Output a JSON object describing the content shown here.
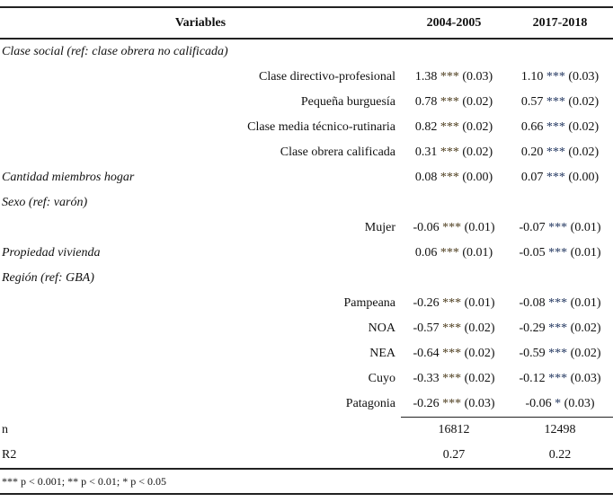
{
  "header": {
    "variables": "Variables",
    "col1": "2004-2005",
    "col2": "2017-2018"
  },
  "rows": [
    {
      "type": "cat",
      "label": "Clase social (ref: clase obrera no calificada)"
    },
    {
      "type": "row",
      "label": "Clase directivo-profesional",
      "v1": "1.38",
      "s1": "***",
      "e1": "(0.03)",
      "v2": "1.10",
      "s2": "***",
      "e2": "(0.03)"
    },
    {
      "type": "row",
      "label": "Pequeña burguesía",
      "v1": "0.78",
      "s1": "***",
      "e1": "(0.02)",
      "v2": "0.57",
      "s2": "***",
      "e2": "(0.02)"
    },
    {
      "type": "row",
      "label": "Clase media técnico-rutinaria",
      "v1": "0.82",
      "s1": "***",
      "e1": "(0.02)",
      "v2": "0.66",
      "s2": "***",
      "e2": "(0.02)"
    },
    {
      "type": "row",
      "label": "Clase obrera calificada",
      "v1": "0.31",
      "s1": "***",
      "e1": "(0.02)",
      "v2": "0.20",
      "s2": "***",
      "e2": "(0.02)"
    },
    {
      "type": "catrow",
      "label": "Cantidad miembros hogar",
      "v1": "0.08",
      "s1": "***",
      "e1": "(0.00)",
      "v2": "0.07",
      "s2": "***",
      "e2": "(0.00)"
    },
    {
      "type": "cat",
      "label": "Sexo (ref: varón)"
    },
    {
      "type": "row",
      "label": "Mujer",
      "v1": "-0.06",
      "s1": "***",
      "e1": "(0.01)",
      "v2": "-0.07",
      "s2": "***",
      "e2": "(0.01)"
    },
    {
      "type": "catrow",
      "label": "Propiedad vivienda",
      "v1": "0.06",
      "s1": "***",
      "e1": "(0.01)",
      "v2": "-0.05",
      "s2": "***",
      "e2": "(0.01)"
    },
    {
      "type": "cat",
      "label": "Región (ref: GBA)"
    },
    {
      "type": "row",
      "label": "Pampeana",
      "v1": "-0.26",
      "s1": "***",
      "e1": "(0.01)",
      "v2": "-0.08",
      "s2": "***",
      "e2": "(0.01)"
    },
    {
      "type": "row",
      "label": "NOA",
      "v1": "-0.57",
      "s1": "***",
      "e1": "(0.02)",
      "v2": "-0.29",
      "s2": "***",
      "e2": "(0.02)"
    },
    {
      "type": "row",
      "label": "NEA",
      "v1": "-0.64",
      "s1": "***",
      "e1": "(0.02)",
      "v2": "-0.59",
      "s2": "***",
      "e2": "(0.02)"
    },
    {
      "type": "row",
      "label": "Cuyo",
      "v1": "-0.33",
      "s1": "***",
      "e1": "(0.02)",
      "v2": "-0.12",
      "s2": "***",
      "e2": "(0.03)"
    },
    {
      "type": "row",
      "label": "Patagonia",
      "v1": "-0.26",
      "s1": "***",
      "e1": "(0.03)",
      "v2": "-0.06",
      "s2": "*",
      "e2": "(0.03)"
    }
  ],
  "stats": [
    {
      "label": "n",
      "v1": "16812",
      "v2": "12498"
    },
    {
      "label": "R2",
      "v1": "0.27",
      "v2": "0.22"
    }
  ],
  "footnote": "*** p < 0.001; ** p < 0.01; * p < 0.05"
}
